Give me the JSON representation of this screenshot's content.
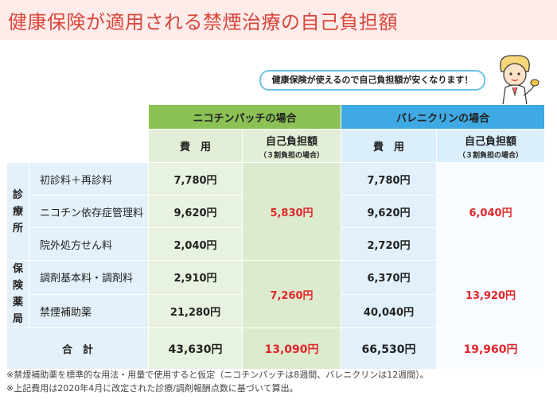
{
  "title": "健康保険が適用される禁煙治療の自己負担額",
  "bubble_text": "健康保険が使えるので自己負担額が安くなります！",
  "mascot_icon": "doctor-mascot-icon",
  "colors": {
    "title": "#d9463c",
    "green_header": "#8cc255",
    "blue_header": "#3fa9e4",
    "highlight": "#e3262b"
  },
  "table": {
    "nicotine_header": "ニコチンパッチの場合",
    "varenicline_header": "バレニクリンの場合",
    "fee_label": "費　用",
    "copay_label": "自己負担額",
    "copay_note": "（３割負担の場合）",
    "group_clinic": "診療所",
    "group_pharmacy": "保険薬局",
    "total_label": "合　計",
    "rows": [
      {
        "label": "初診料＋再診料",
        "nic_fee": "7,780円",
        "var_fee": "7,780円"
      },
      {
        "label": "ニコチン依存症管理料",
        "nic_fee": "9,620円",
        "var_fee": "9,620円"
      },
      {
        "label": "院外処方せん料",
        "nic_fee": "2,040円",
        "var_fee": "2,720円"
      },
      {
        "label": "調剤基本料・調剤料",
        "nic_fee": "2,910円",
        "var_fee": "6,370円"
      },
      {
        "label": "禁煙補助薬",
        "nic_fee": "21,280円",
        "var_fee": "40,040円"
      }
    ],
    "clinic_copay_nic": "5,830円",
    "clinic_copay_var": "6,040円",
    "pharmacy_copay_nic": "7,260円",
    "pharmacy_copay_var": "13,920円",
    "total_nic_fee": "43,630円",
    "total_nic_copay": "13,090円",
    "total_var_fee": "66,530円",
    "total_var_copay": "19,960円"
  },
  "notes": [
    "※禁煙補助薬を標準的な用法・用量で使用すると仮定（ニコチンパッチは8週間、バレニクリンは12週間）。",
    "※上記費用は2020年4月に改定された診療/調剤報酬点数に基づいて算出。"
  ]
}
